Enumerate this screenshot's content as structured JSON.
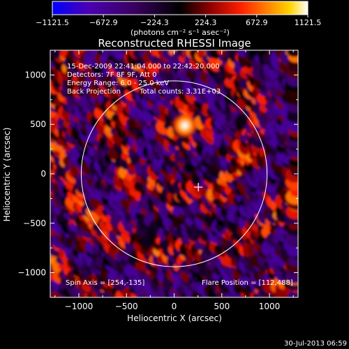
{
  "colorbar": {
    "ticks": [
      "-1121.5",
      "-672.9",
      "-224.3",
      "224.3",
      "672.9",
      "1121.5"
    ],
    "units": "(photons cm⁻² s⁻¹ asec⁻²)",
    "colors": [
      "#0000ff",
      "#4b00b4",
      "#3a0060",
      "#000000",
      "#900000",
      "#ff2000",
      "#ff8a00",
      "#ffd400",
      "#ffffff"
    ]
  },
  "chart_data": {
    "type": "heatmap",
    "title": "Reconstructed RHESSI Image",
    "xlabel": "Heliocentric X (arcsec)",
    "ylabel": "Heliocentric Y (arcsec)",
    "xlim": [
      -1300,
      1300
    ],
    "ylim": [
      -1250,
      1250
    ],
    "xticks": [
      -1000,
      -500,
      0,
      500,
      1000
    ],
    "xtick_labels": [
      "−1000",
      "−500",
      "0",
      "500",
      "1000"
    ],
    "yticks": [
      -1000,
      -500,
      0,
      500,
      1000
    ],
    "ytick_labels": [
      "−1000",
      "−500",
      "0",
      "500",
      "1000"
    ],
    "value_range": [
      -1121.5,
      1121.5
    ],
    "solar_disk": {
      "center": [
        0,
        0
      ],
      "radius_arcsec": 975
    },
    "spin_axis": [
      254,
      -135
    ],
    "flare_position": [
      112,
      488
    ],
    "annotations": [
      "15-Dec-2009 22:41:04.000 to 22:42:20.000",
      "Detectors: 7F 8F 9F, Att 0",
      "Energy Range: 6.0 - 25.0 keV",
      "Back Projection",
      "Total counts: 3.31E+03"
    ],
    "footer_annotations": [
      "Spin Axis = [254,-135]",
      "Flare Position = [112,488]"
    ],
    "timestamp": "30-Jul-2013 06:59"
  }
}
